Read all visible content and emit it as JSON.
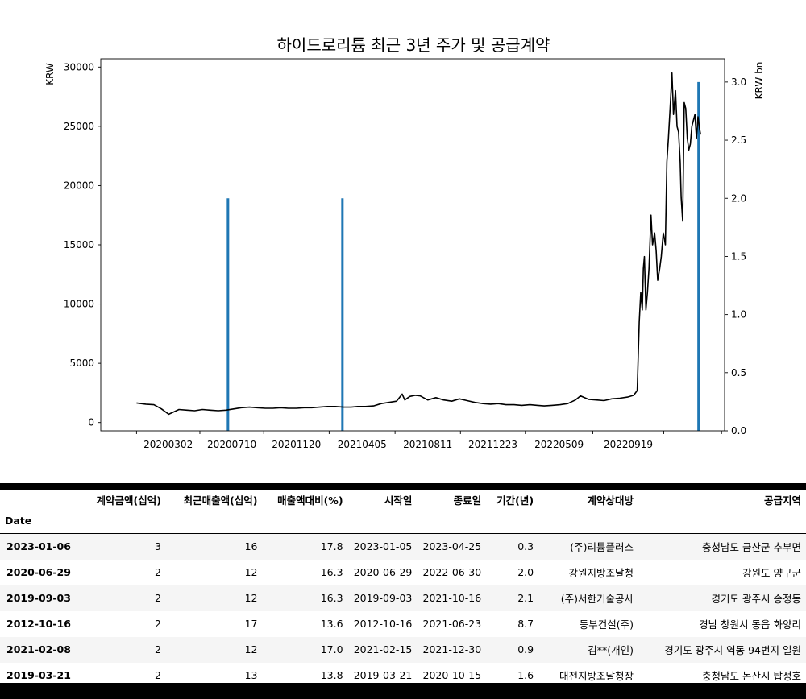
{
  "chart_data": {
    "type": "line",
    "title": "하이드로리튬 최근 3년 주가 및 공급계약",
    "ylabel_left": "KRW",
    "ylabel_right": "KRW bn",
    "y_left_ticks": [
      "0",
      "5000",
      "10000",
      "15000",
      "20000",
      "25000",
      "30000"
    ],
    "y_right_ticks": [
      "0.0",
      "0.5",
      "1.0",
      "1.5",
      "2.0",
      "2.5",
      "3.0"
    ],
    "x_ticks": [
      "20200302",
      "20200710",
      "20201120",
      "20210405",
      "20210811",
      "20211223",
      "20220509",
      "20220919"
    ],
    "ylim_left": [
      -700,
      30700
    ],
    "ylim_right": [
      0,
      3.2
    ],
    "line_color": "#000000",
    "bar_color": "#1f77b4",
    "grid": false,
    "series": [
      {
        "type": "line",
        "x": [
          "2020-01-02",
          "2020-01-20",
          "2020-02-05",
          "2020-02-20",
          "2020-03-05",
          "2020-03-15",
          "2020-03-25",
          "2020-04-10",
          "2020-04-25",
          "2020-05-10",
          "2020-05-25",
          "2020-06-10",
          "2020-06-25",
          "2020-07-10",
          "2020-07-25",
          "2020-08-10",
          "2020-08-25",
          "2020-09-10",
          "2020-09-25",
          "2020-10-10",
          "2020-10-25",
          "2020-11-10",
          "2020-11-25",
          "2020-12-10",
          "2020-12-25",
          "2021-01-10",
          "2021-01-25",
          "2021-02-10",
          "2021-02-25",
          "2021-03-10",
          "2021-03-25",
          "2021-04-10",
          "2021-04-25",
          "2021-05-10",
          "2021-05-25",
          "2021-06-05",
          "2021-06-10",
          "2021-06-20",
          "2021-07-01",
          "2021-07-10",
          "2021-07-25",
          "2021-08-10",
          "2021-08-25",
          "2021-09-10",
          "2021-09-25",
          "2021-10-10",
          "2021-10-25",
          "2021-11-10",
          "2021-11-25",
          "2021-12-10",
          "2021-12-25",
          "2022-01-10",
          "2022-01-25",
          "2022-02-10",
          "2022-02-25",
          "2022-03-10",
          "2022-03-25",
          "2022-04-10",
          "2022-04-25",
          "2022-05-10",
          "2022-05-20",
          "2022-06-05",
          "2022-06-20",
          "2022-07-05",
          "2022-07-20",
          "2022-08-05",
          "2022-08-20",
          "2022-09-01",
          "2022-09-08",
          "2022-09-12",
          "2022-09-15",
          "2022-09-18",
          "2022-09-20",
          "2022-09-22",
          "2022-09-25",
          "2022-09-28",
          "2022-10-01",
          "2022-10-05",
          "2022-10-08",
          "2022-10-12",
          "2022-10-15",
          "2022-10-18",
          "2022-10-22",
          "2022-10-25",
          "2022-10-29",
          "2022-11-02",
          "2022-11-05",
          "2022-11-08",
          "2022-11-12",
          "2022-11-15",
          "2022-11-18",
          "2022-11-22",
          "2022-11-25",
          "2022-11-28",
          "2022-12-01",
          "2022-12-03",
          "2022-12-06",
          "2022-12-09",
          "2022-12-12",
          "2022-12-15",
          "2022-12-18",
          "2022-12-21",
          "2022-12-24",
          "2022-12-27",
          "2022-12-30",
          "2023-01-02",
          "2023-01-05",
          "2023-01-08",
          "2023-01-10"
        ],
        "values": [
          1650,
          1550,
          1500,
          1150,
          700,
          900,
          1100,
          1050,
          1000,
          1100,
          1050,
          1000,
          1050,
          1150,
          1250,
          1300,
          1250,
          1200,
          1200,
          1250,
          1200,
          1200,
          1250,
          1250,
          1300,
          1350,
          1350,
          1300,
          1300,
          1350,
          1350,
          1400,
          1600,
          1700,
          1800,
          2400,
          1900,
          2200,
          2300,
          2250,
          1900,
          2100,
          1900,
          1800,
          2000,
          1850,
          1700,
          1600,
          1550,
          1600,
          1500,
          1500,
          1450,
          1500,
          1450,
          1400,
          1450,
          1500,
          1600,
          1900,
          2250,
          1950,
          1900,
          1850,
          2000,
          2050,
          2150,
          2300,
          2700,
          8500,
          11000,
          9500,
          13000,
          14000,
          9500,
          11000,
          13000,
          17500,
          15000,
          16000,
          14500,
          12000,
          13000,
          14000,
          16000,
          15000,
          22000,
          24000,
          27000,
          29500,
          26000,
          28000,
          25000,
          24500,
          22000,
          19000,
          17000,
          27000,
          26500,
          24000,
          23000,
          23500,
          25000,
          25500,
          26000,
          24000,
          25800,
          24800,
          24300
        ]
      }
    ],
    "bars": {
      "x": [
        "2020-06-29",
        "2021-02-08",
        "2023-01-06"
      ],
      "values": [
        2.0,
        2.0,
        3.0
      ]
    }
  },
  "table": {
    "headers": [
      "계약금액(십억)",
      "최근매출액(십억)",
      "매출액대비(%)",
      "시작일",
      "종료일",
      "기간(년)",
      "계약상대방",
      "공급지역"
    ],
    "index_name": "Date",
    "rows": [
      {
        "date": "2023-01-06",
        "cells": [
          "3",
          "16",
          "17.8",
          "2023-01-05",
          "2023-04-25",
          "0.3",
          "(주)리튬플러스",
          "충청남도 금산군 추부면"
        ]
      },
      {
        "date": "2020-06-29",
        "cells": [
          "2",
          "12",
          "16.3",
          "2020-06-29",
          "2022-06-30",
          "2.0",
          "강원지방조달청",
          "강원도 양구군"
        ]
      },
      {
        "date": "2019-09-03",
        "cells": [
          "2",
          "12",
          "16.3",
          "2019-09-03",
          "2021-10-16",
          "2.1",
          "(주)서한기술공사",
          "경기도 광주시 송정동"
        ]
      },
      {
        "date": "2012-10-16",
        "cells": [
          "2",
          "17",
          "13.6",
          "2012-10-16",
          "2021-06-23",
          "8.7",
          "동부건설(주)",
          "경남 창원시 동읍 화양리"
        ]
      },
      {
        "date": "2021-02-08",
        "cells": [
          "2",
          "12",
          "17.0",
          "2021-02-15",
          "2021-12-30",
          "0.9",
          "김**(개인)",
          "경기도 광주시 역동 94번지 일원"
        ]
      },
      {
        "date": "2019-03-21",
        "cells": [
          "2",
          "13",
          "13.8",
          "2019-03-21",
          "2020-10-15",
          "1.6",
          "대전지방조달청장",
          "충청남도 논산시 탑정호"
        ]
      }
    ]
  }
}
